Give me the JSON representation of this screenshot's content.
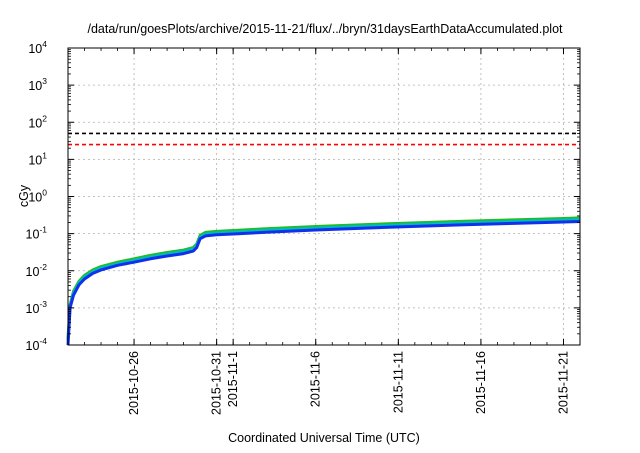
{
  "chart_data": {
    "type": "line",
    "title": "/data/run/goesPlots/archive/2015-11-21/flux/../bryn/31daysEarthDataAccumulated.plot",
    "xlabel": "Coordinated Universal Time (UTC)",
    "ylabel": "cGy",
    "y_scale": "log",
    "ylim": [
      0.0001,
      10000
    ],
    "x_range_days_labels": [
      "2015-10-22",
      "2015-11-22"
    ],
    "y_ticks": [
      {
        "value": 0.0001,
        "base": "10",
        "exp": "-4"
      },
      {
        "value": 0.001,
        "base": "10",
        "exp": "-3"
      },
      {
        "value": 0.01,
        "base": "10",
        "exp": "-2"
      },
      {
        "value": 0.1,
        "base": "10",
        "exp": "-1"
      },
      {
        "value": 1,
        "base": "10",
        "exp": "0"
      },
      {
        "value": 10,
        "base": "10",
        "exp": "1"
      },
      {
        "value": 100,
        "base": "10",
        "exp": "2"
      },
      {
        "value": 1000,
        "base": "10",
        "exp": "3"
      },
      {
        "value": 10000,
        "base": "10",
        "exp": "4"
      }
    ],
    "x_ticks": [
      {
        "date": "2015-10-26",
        "label": "2015-10-26"
      },
      {
        "date": "2015-10-31",
        "label": "2015-10-31"
      },
      {
        "date": "2015-11-01",
        "label": "2015-11-1"
      },
      {
        "date": "2015-11-06",
        "label": "2015-11-6"
      },
      {
        "date": "2015-11-11",
        "label": "2015-11-11"
      },
      {
        "date": "2015-11-16",
        "label": "2015-11-16"
      },
      {
        "date": "2015-11-21",
        "label": "2015-11-21"
      }
    ],
    "grid": true,
    "thresholds": [
      {
        "color": "#000000",
        "value": 50
      },
      {
        "color": "#ff0000",
        "value": 25
      }
    ],
    "series": [
      {
        "color": "#22bb22",
        "points": [
          [
            "2015-10-22 00:00",
            0.00015
          ],
          [
            "2015-10-22 03:00",
            0.0012
          ],
          [
            "2015-10-22 08:00",
            0.0028
          ],
          [
            "2015-10-22 16:00",
            0.0052
          ],
          [
            "2015-10-23 00:00",
            0.0075
          ],
          [
            "2015-10-23 12:00",
            0.0105
          ],
          [
            "2015-10-24 00:00",
            0.013
          ],
          [
            "2015-10-25 00:00",
            0.017
          ],
          [
            "2015-10-26 00:00",
            0.021
          ],
          [
            "2015-10-27 00:00",
            0.026
          ],
          [
            "2015-10-28 00:00",
            0.031
          ],
          [
            "2015-10-29 00:00",
            0.036
          ],
          [
            "2015-10-29 14:00",
            0.042
          ],
          [
            "2015-10-29 19:00",
            0.052
          ],
          [
            "2015-10-30 00:00",
            0.09
          ],
          [
            "2015-10-30 08:00",
            0.108
          ],
          [
            "2015-10-31 00:00",
            0.115
          ],
          [
            "2015-11-01 00:00",
            0.121
          ],
          [
            "2015-11-03 00:00",
            0.135
          ],
          [
            "2015-11-06 00:00",
            0.155
          ],
          [
            "2015-11-09 00:00",
            0.175
          ],
          [
            "2015-11-12 00:00",
            0.195
          ],
          [
            "2015-11-15 00:00",
            0.215
          ],
          [
            "2015-11-18 00:00",
            0.235
          ],
          [
            "2015-11-21 00:00",
            0.255
          ],
          [
            "2015-11-22 00:00",
            0.265
          ]
        ]
      },
      {
        "color": "#00bbbb",
        "points": [
          [
            "2015-10-22 00:00",
            0.00013
          ],
          [
            "2015-10-22 03:00",
            0.0011
          ],
          [
            "2015-10-22 08:00",
            0.0025
          ],
          [
            "2015-10-22 16:00",
            0.0047
          ],
          [
            "2015-10-23 00:00",
            0.0068
          ],
          [
            "2015-10-23 12:00",
            0.0095
          ],
          [
            "2015-10-24 00:00",
            0.0118
          ],
          [
            "2015-10-25 00:00",
            0.0155
          ],
          [
            "2015-10-26 00:00",
            0.019
          ],
          [
            "2015-10-27 00:00",
            0.0235
          ],
          [
            "2015-10-28 00:00",
            0.028
          ],
          [
            "2015-10-29 00:00",
            0.033
          ],
          [
            "2015-10-29 14:00",
            0.038
          ],
          [
            "2015-10-29 19:00",
            0.047
          ],
          [
            "2015-10-30 00:00",
            0.082
          ],
          [
            "2015-10-30 08:00",
            0.098
          ],
          [
            "2015-10-31 00:00",
            0.105
          ],
          [
            "2015-11-01 00:00",
            0.11
          ],
          [
            "2015-11-03 00:00",
            0.123
          ],
          [
            "2015-11-06 00:00",
            0.141
          ],
          [
            "2015-11-09 00:00",
            0.159
          ],
          [
            "2015-11-12 00:00",
            0.177
          ],
          [
            "2015-11-15 00:00",
            0.195
          ],
          [
            "2015-11-18 00:00",
            0.213
          ],
          [
            "2015-11-21 00:00",
            0.231
          ],
          [
            "2015-11-22 00:00",
            0.24
          ]
        ]
      },
      {
        "color": "#1030ee",
        "points": [
          [
            "2015-10-22 00:00",
            0.0001
          ],
          [
            "2015-10-22 03:00",
            0.001
          ],
          [
            "2015-10-22 08:00",
            0.0022
          ],
          [
            "2015-10-22 16:00",
            0.0042
          ],
          [
            "2015-10-23 00:00",
            0.006
          ],
          [
            "2015-10-23 12:00",
            0.0085
          ],
          [
            "2015-10-24 00:00",
            0.0105
          ],
          [
            "2015-10-25 00:00",
            0.014
          ],
          [
            "2015-10-26 00:00",
            0.017
          ],
          [
            "2015-10-27 00:00",
            0.021
          ],
          [
            "2015-10-28 00:00",
            0.025
          ],
          [
            "2015-10-29 00:00",
            0.029
          ],
          [
            "2015-10-29 14:00",
            0.034
          ],
          [
            "2015-10-29 19:00",
            0.042
          ],
          [
            "2015-10-30 00:00",
            0.073
          ],
          [
            "2015-10-30 08:00",
            0.087
          ],
          [
            "2015-10-31 00:00",
            0.093
          ],
          [
            "2015-11-01 00:00",
            0.098
          ],
          [
            "2015-11-03 00:00",
            0.109
          ],
          [
            "2015-11-06 00:00",
            0.125
          ],
          [
            "2015-11-09 00:00",
            0.141
          ],
          [
            "2015-11-12 00:00",
            0.157
          ],
          [
            "2015-11-15 00:00",
            0.173
          ],
          [
            "2015-11-18 00:00",
            0.189
          ],
          [
            "2015-11-21 00:00",
            0.205
          ],
          [
            "2015-11-22 00:00",
            0.212
          ]
        ]
      }
    ]
  }
}
